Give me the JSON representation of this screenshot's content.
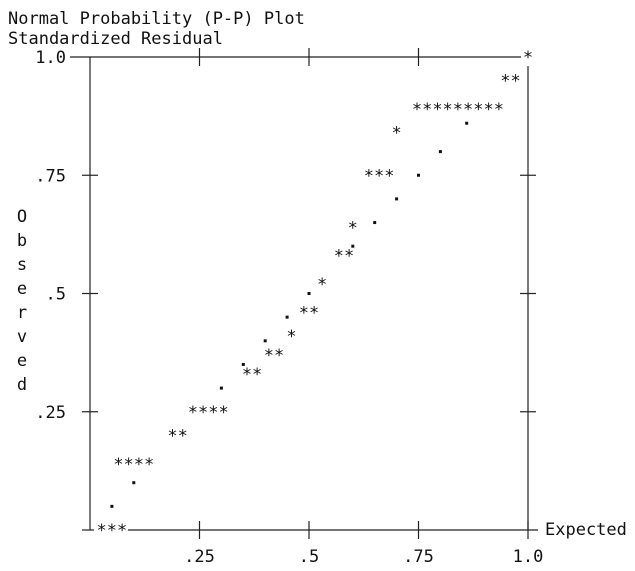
{
  "chart_data": {
    "type": "scatter",
    "title": "Normal Probability (P-P) Plot",
    "subtitle": "Standardized Residual",
    "xlabel": "Expected",
    "ylabel": "Observed",
    "xlim": [
      0,
      1
    ],
    "ylim": [
      0,
      1
    ],
    "x_ticks": [
      ".25",
      ".5",
      ".75",
      "1.0"
    ],
    "y_ticks": [
      ".25",
      ".5",
      ".75",
      "1.0"
    ],
    "marker": "*",
    "reference_marker": ".",
    "observed_text_rows": [
      {
        "x": 0.05,
        "y": 0.0,
        "text": "***"
      },
      {
        "x": 0.1,
        "y": 0.14,
        "text": "****"
      },
      {
        "x": 0.2,
        "y": 0.2,
        "text": "**"
      },
      {
        "x": 0.27,
        "y": 0.25,
        "text": "****"
      },
      {
        "x": 0.37,
        "y": 0.33,
        "text": "**"
      },
      {
        "x": 0.42,
        "y": 0.37,
        "text": "**"
      },
      {
        "x": 0.46,
        "y": 0.41,
        "text": "*"
      },
      {
        "x": 0.5,
        "y": 0.46,
        "text": "**"
      },
      {
        "x": 0.53,
        "y": 0.52,
        "text": "*"
      },
      {
        "x": 0.58,
        "y": 0.58,
        "text": "**"
      },
      {
        "x": 0.6,
        "y": 0.64,
        "text": "*"
      },
      {
        "x": 0.66,
        "y": 0.75,
        "text": "***"
      },
      {
        "x": 0.7,
        "y": 0.84,
        "text": "*"
      },
      {
        "x": 0.84,
        "y": 0.89,
        "text": "*********"
      },
      {
        "x": 0.96,
        "y": 0.95,
        "text": "**"
      },
      {
        "x": 1.0,
        "y": 1.0,
        "text": "*"
      }
    ],
    "expected_points": [
      [
        0.05,
        0.05
      ],
      [
        0.1,
        0.1
      ],
      [
        0.3,
        0.3
      ],
      [
        0.35,
        0.35
      ],
      [
        0.4,
        0.4
      ],
      [
        0.45,
        0.45
      ],
      [
        0.5,
        0.5
      ],
      [
        0.6,
        0.6
      ],
      [
        0.65,
        0.65
      ],
      [
        0.7,
        0.7
      ],
      [
        0.75,
        0.75
      ],
      [
        0.8,
        0.8
      ],
      [
        0.86,
        0.86
      ]
    ]
  }
}
